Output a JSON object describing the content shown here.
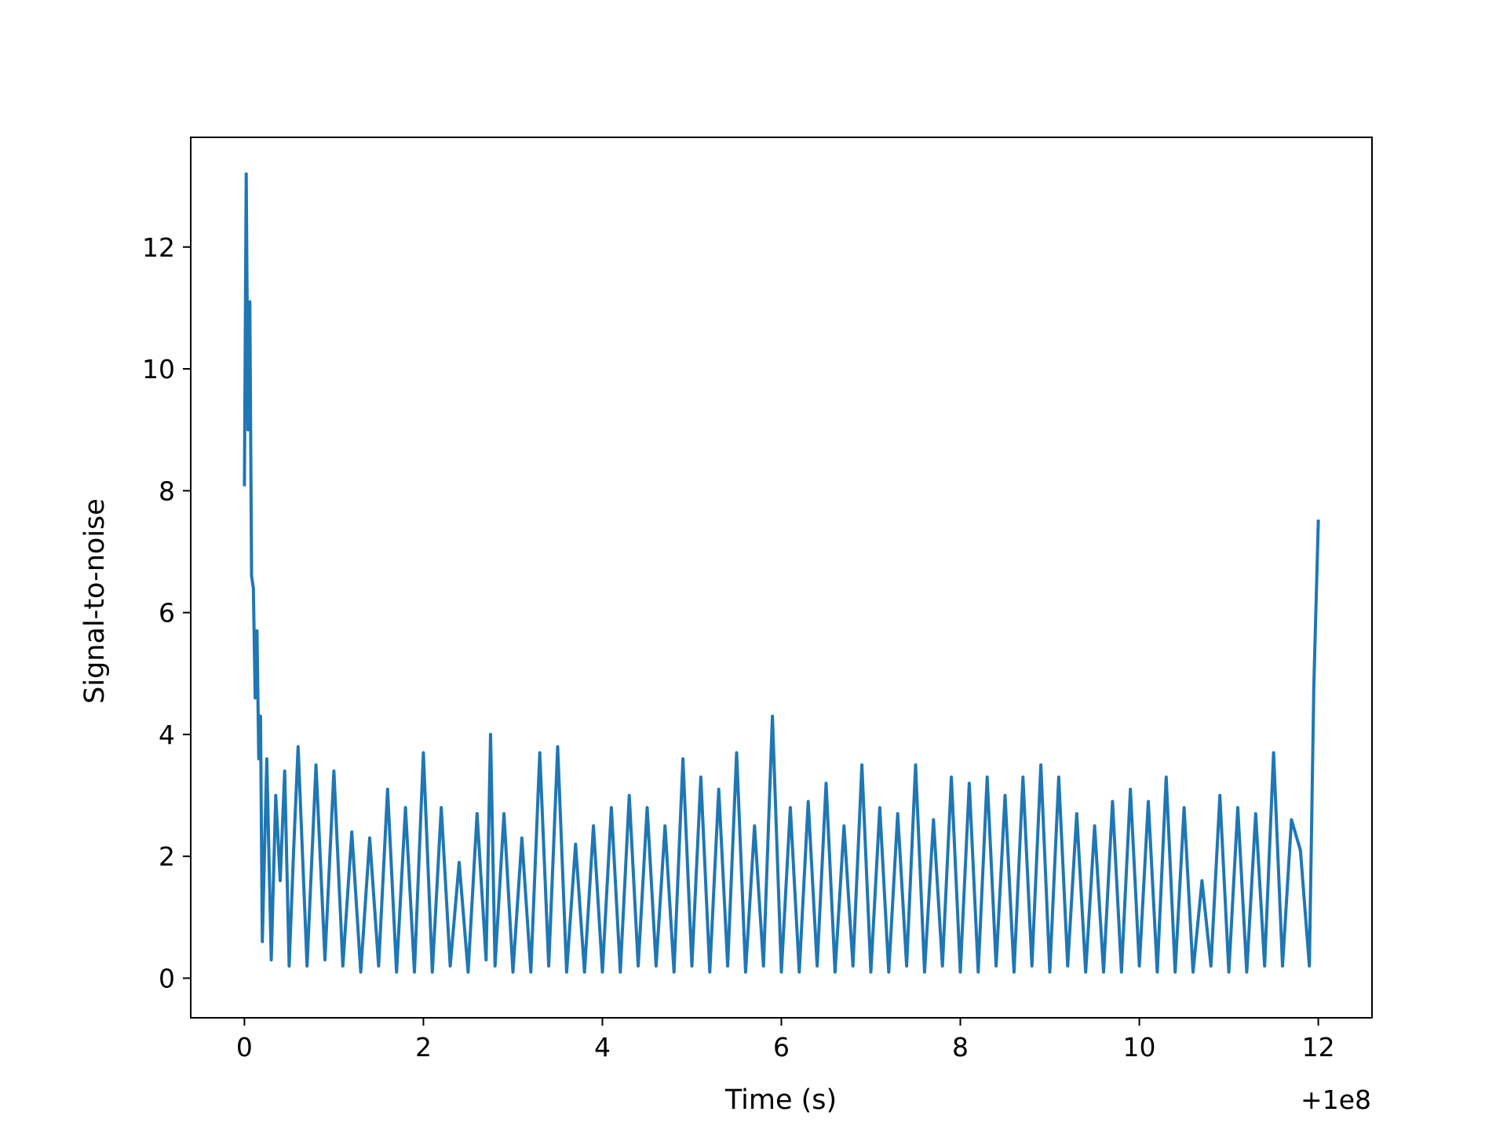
{
  "chart_data": {
    "type": "line",
    "title": "",
    "xlabel": "Time (s)",
    "ylabel": "Signal-to-noise",
    "x_offset_label": "+1e8",
    "xlim": [
      -0.6,
      12.6
    ],
    "ylim": [
      -0.65,
      13.8
    ],
    "xticks": [
      0,
      2,
      4,
      6,
      8,
      10,
      12
    ],
    "yticks": [
      0,
      2,
      4,
      6,
      8,
      10,
      12
    ],
    "grid": false,
    "line_color": "#1f77b4",
    "series": [
      {
        "x": [
          0.0,
          0.02,
          0.04,
          0.06,
          0.08,
          0.1,
          0.12,
          0.14,
          0.16,
          0.18,
          0.2,
          0.25,
          0.3,
          0.35,
          0.4,
          0.45,
          0.5,
          0.55,
          0.6,
          0.7,
          0.8,
          0.9,
          1.0,
          1.1,
          1.2,
          1.3,
          1.4,
          1.5,
          1.6,
          1.7,
          1.8,
          1.9,
          2.0,
          2.1,
          2.2,
          2.3,
          2.4,
          2.5,
          2.6,
          2.7,
          2.75,
          2.8,
          2.9,
          3.0,
          3.1,
          3.2,
          3.3,
          3.4,
          3.5,
          3.6,
          3.7,
          3.8,
          3.9,
          4.0,
          4.1,
          4.2,
          4.3,
          4.4,
          4.5,
          4.6,
          4.7,
          4.8,
          4.9,
          5.0,
          5.1,
          5.2,
          5.3,
          5.4,
          5.5,
          5.6,
          5.7,
          5.8,
          5.9,
          6.0,
          6.1,
          6.2,
          6.3,
          6.4,
          6.5,
          6.6,
          6.7,
          6.8,
          6.9,
          7.0,
          7.1,
          7.2,
          7.3,
          7.4,
          7.5,
          7.6,
          7.7,
          7.8,
          7.9,
          8.0,
          8.1,
          8.2,
          8.3,
          8.4,
          8.5,
          8.6,
          8.7,
          8.8,
          8.9,
          9.0,
          9.1,
          9.2,
          9.3,
          9.4,
          9.5,
          9.6,
          9.7,
          9.8,
          9.9,
          10.0,
          10.1,
          10.2,
          10.3,
          10.4,
          10.5,
          10.6,
          10.7,
          10.8,
          10.9,
          11.0,
          11.1,
          11.2,
          11.3,
          11.4,
          11.5,
          11.6,
          11.7,
          11.8,
          11.9,
          11.95,
          12.0
        ],
        "values": [
          8.1,
          13.2,
          9.0,
          11.1,
          6.6,
          6.4,
          4.6,
          5.7,
          3.6,
          4.3,
          0.6,
          3.6,
          0.3,
          3.0,
          1.6,
          3.4,
          0.2,
          2.1,
          3.8,
          0.2,
          3.5,
          0.3,
          3.4,
          0.2,
          2.4,
          0.1,
          2.3,
          0.2,
          3.1,
          0.1,
          2.8,
          0.1,
          3.7,
          0.1,
          2.8,
          0.2,
          1.9,
          0.1,
          2.7,
          0.3,
          4.0,
          0.2,
          2.7,
          0.1,
          2.3,
          0.1,
          3.7,
          0.2,
          3.8,
          0.1,
          2.2,
          0.1,
          2.5,
          0.1,
          2.8,
          0.1,
          3.0,
          0.2,
          2.8,
          0.2,
          2.5,
          0.1,
          3.6,
          0.2,
          3.3,
          0.1,
          3.1,
          0.2,
          3.7,
          0.1,
          2.5,
          0.2,
          4.3,
          0.1,
          2.8,
          0.1,
          2.9,
          0.2,
          3.2,
          0.1,
          2.5,
          0.2,
          3.5,
          0.1,
          2.8,
          0.1,
          2.7,
          0.2,
          3.5,
          0.1,
          2.6,
          0.2,
          3.3,
          0.1,
          3.2,
          0.1,
          3.3,
          0.2,
          3.0,
          0.1,
          3.3,
          0.2,
          3.5,
          0.1,
          3.3,
          0.2,
          2.7,
          0.1,
          2.5,
          0.1,
          2.9,
          0.1,
          3.1,
          0.2,
          2.9,
          0.1,
          3.3,
          0.1,
          2.8,
          0.1,
          1.6,
          0.2,
          3.0,
          0.1,
          2.8,
          0.1,
          2.7,
          0.2,
          3.7,
          0.2,
          2.6,
          2.1,
          0.2,
          4.8,
          7.5
        ]
      }
    ]
  }
}
